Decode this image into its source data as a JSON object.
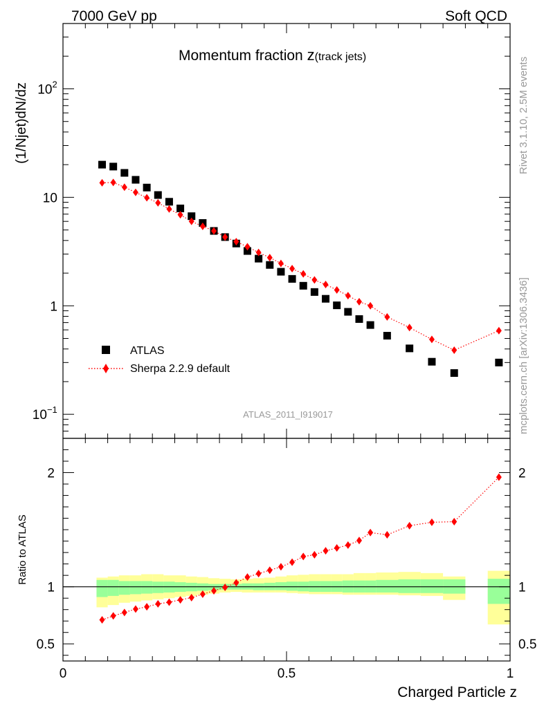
{
  "header": {
    "energy_label": "7000 GeV pp",
    "process_label": "Soft QCD"
  },
  "side_labels": {
    "rivet": "Rivet 3.1.10,  2.5M events",
    "source": "mcplots.cern.ch [arXiv:1306.3436]"
  },
  "chart_data": {
    "type": "scatter",
    "title_main": "Momentum fraction ",
    "title_var": "z",
    "title_sub": "(track jets)",
    "analysis_id": "ATLAS_2011_I919017",
    "xlabel": "Charged Particle z",
    "ylabel": "(1/Njet)dN/dz",
    "ratio_ylabel": "Ratio to ATLAS",
    "xlim": [
      0,
      1
    ],
    "ylim": [
      0.06,
      400
    ],
    "ylog": true,
    "ratio_ylim": [
      0.35,
      2.3
    ],
    "x_ticks": [
      {
        "v": 0,
        "label": "0"
      },
      {
        "v": 0.5,
        "label": "0.5"
      },
      {
        "v": 1,
        "label": "1"
      }
    ],
    "y_ticks": [
      {
        "v": 0.1,
        "base": "10",
        "exp": "−1"
      },
      {
        "v": 1,
        "base": "1",
        "exp": ""
      },
      {
        "v": 10,
        "base": "10",
        "exp": ""
      },
      {
        "v": 100,
        "base": "10",
        "exp": "2"
      }
    ],
    "ratio_ticks": [
      {
        "v": 0.5,
        "label": "0.5"
      },
      {
        "v": 1,
        "label": "1"
      },
      {
        "v": 2,
        "label": "2"
      }
    ],
    "legend_position": "lower-left",
    "series": [
      {
        "name": "ATLAS",
        "color": "#000000",
        "marker": "square",
        "x": [
          0.0875,
          0.1125,
          0.1375,
          0.1625,
          0.1875,
          0.2125,
          0.2375,
          0.2625,
          0.2875,
          0.3125,
          0.3375,
          0.3625,
          0.3875,
          0.4125,
          0.4375,
          0.4625,
          0.4875,
          0.5125,
          0.5375,
          0.5625,
          0.5875,
          0.6125,
          0.6375,
          0.6625,
          0.6875,
          0.725,
          0.775,
          0.825,
          0.875,
          0.975
        ],
        "y": [
          20.0,
          19.2,
          16.8,
          14.5,
          12.3,
          10.5,
          9.1,
          7.9,
          6.7,
          5.8,
          4.9,
          4.3,
          3.75,
          3.2,
          2.72,
          2.38,
          2.06,
          1.77,
          1.53,
          1.34,
          1.16,
          1.01,
          0.88,
          0.755,
          0.665,
          0.53,
          0.405,
          0.305,
          0.24,
          0.3
        ]
      },
      {
        "name": "Sherpa 2.2.9 default",
        "color": "#ff0000",
        "marker": "diamond",
        "line": "dotted",
        "x": [
          0.0875,
          0.1125,
          0.1375,
          0.1625,
          0.1875,
          0.2125,
          0.2375,
          0.2625,
          0.2875,
          0.3125,
          0.3375,
          0.3625,
          0.3875,
          0.4125,
          0.4375,
          0.4625,
          0.4875,
          0.5125,
          0.5375,
          0.5625,
          0.5875,
          0.6125,
          0.6375,
          0.6625,
          0.6875,
          0.725,
          0.775,
          0.825,
          0.875,
          0.975
        ],
        "y": [
          13.6,
          13.7,
          12.4,
          11.1,
          9.9,
          8.9,
          7.8,
          6.9,
          6.0,
          5.4,
          4.9,
          4.3,
          3.9,
          3.5,
          3.1,
          2.78,
          2.46,
          2.2,
          1.97,
          1.73,
          1.57,
          1.4,
          1.24,
          1.09,
          1.0,
          0.79,
          0.63,
          0.49,
          0.39,
          0.59
        ],
        "ratio": [
          0.71,
          0.745,
          0.775,
          0.805,
          0.825,
          0.85,
          0.865,
          0.885,
          0.905,
          0.935,
          0.965,
          0.995,
          1.035,
          1.085,
          1.115,
          1.145,
          1.175,
          1.215,
          1.265,
          1.28,
          1.315,
          1.34,
          1.365,
          1.405,
          1.475,
          1.455,
          1.535,
          1.565,
          1.57,
          1.96
        ]
      }
    ],
    "uncertainty_bands": {
      "inner_color": "#99ff99",
      "outer_color": "#ffff99",
      "bins": [
        {
          "x0": 0.075,
          "x1": 0.1,
          "lo1": 0.91,
          "hi1": 1.06,
          "lo2": 0.82,
          "hi2": 1.08
        },
        {
          "x0": 0.1,
          "x1": 0.125,
          "lo1": 0.92,
          "hi1": 1.06,
          "lo2": 0.84,
          "hi2": 1.09
        },
        {
          "x0": 0.125,
          "x1": 0.15,
          "lo1": 0.93,
          "hi1": 1.05,
          "lo2": 0.86,
          "hi2": 1.1
        },
        {
          "x0": 0.15,
          "x1": 0.175,
          "lo1": 0.935,
          "hi1": 1.05,
          "lo2": 0.87,
          "hi2": 1.1
        },
        {
          "x0": 0.175,
          "x1": 0.2,
          "lo1": 0.94,
          "hi1": 1.05,
          "lo2": 0.88,
          "hi2": 1.11
        },
        {
          "x0": 0.2,
          "x1": 0.225,
          "lo1": 0.945,
          "hi1": 1.045,
          "lo2": 0.89,
          "hi2": 1.11
        },
        {
          "x0": 0.225,
          "x1": 0.25,
          "lo1": 0.95,
          "hi1": 1.045,
          "lo2": 0.9,
          "hi2": 1.1
        },
        {
          "x0": 0.25,
          "x1": 0.275,
          "lo1": 0.955,
          "hi1": 1.04,
          "lo2": 0.91,
          "hi2": 1.1
        },
        {
          "x0": 0.275,
          "x1": 0.3,
          "lo1": 0.96,
          "hi1": 1.035,
          "lo2": 0.92,
          "hi2": 1.09
        },
        {
          "x0": 0.3,
          "x1": 0.325,
          "lo1": 0.965,
          "hi1": 1.03,
          "lo2": 0.93,
          "hi2": 1.085
        },
        {
          "x0": 0.325,
          "x1": 0.35,
          "lo1": 0.97,
          "hi1": 1.025,
          "lo2": 0.94,
          "hi2": 1.075
        },
        {
          "x0": 0.35,
          "x1": 0.375,
          "lo1": 0.975,
          "hi1": 1.025,
          "lo2": 0.95,
          "hi2": 1.07
        },
        {
          "x0": 0.375,
          "x1": 0.4,
          "lo1": 0.975,
          "hi1": 1.025,
          "lo2": 0.955,
          "hi2": 1.065
        },
        {
          "x0": 0.4,
          "x1": 0.425,
          "lo1": 0.975,
          "hi1": 1.03,
          "lo2": 0.95,
          "hi2": 1.07
        },
        {
          "x0": 0.425,
          "x1": 0.45,
          "lo1": 0.97,
          "hi1": 1.03,
          "lo2": 0.95,
          "hi2": 1.075
        },
        {
          "x0": 0.45,
          "x1": 0.475,
          "lo1": 0.97,
          "hi1": 1.035,
          "lo2": 0.95,
          "hi2": 1.08
        },
        {
          "x0": 0.475,
          "x1": 0.5,
          "lo1": 0.97,
          "hi1": 1.04,
          "lo2": 0.95,
          "hi2": 1.09
        },
        {
          "x0": 0.5,
          "x1": 0.525,
          "lo1": 0.965,
          "hi1": 1.045,
          "lo2": 0.945,
          "hi2": 1.1
        },
        {
          "x0": 0.525,
          "x1": 0.55,
          "lo1": 0.96,
          "hi1": 1.045,
          "lo2": 0.94,
          "hi2": 1.105
        },
        {
          "x0": 0.55,
          "x1": 0.575,
          "lo1": 0.955,
          "hi1": 1.05,
          "lo2": 0.935,
          "hi2": 1.11
        },
        {
          "x0": 0.575,
          "x1": 0.6,
          "lo1": 0.955,
          "hi1": 1.05,
          "lo2": 0.935,
          "hi2": 1.11
        },
        {
          "x0": 0.6,
          "x1": 0.625,
          "lo1": 0.955,
          "hi1": 1.05,
          "lo2": 0.935,
          "hi2": 1.11
        },
        {
          "x0": 0.625,
          "x1": 0.65,
          "lo1": 0.95,
          "hi1": 1.055,
          "lo2": 0.93,
          "hi2": 1.11
        },
        {
          "x0": 0.65,
          "x1": 0.675,
          "lo1": 0.95,
          "hi1": 1.055,
          "lo2": 0.93,
          "hi2": 1.12
        },
        {
          "x0": 0.675,
          "x1": 0.7,
          "lo1": 0.95,
          "hi1": 1.055,
          "lo2": 0.93,
          "hi2": 1.12
        },
        {
          "x0": 0.7,
          "x1": 0.75,
          "lo1": 0.95,
          "hi1": 1.06,
          "lo2": 0.93,
          "hi2": 1.125
        },
        {
          "x0": 0.75,
          "x1": 0.8,
          "lo1": 0.945,
          "hi1": 1.065,
          "lo2": 0.925,
          "hi2": 1.13
        },
        {
          "x0": 0.8,
          "x1": 0.85,
          "lo1": 0.945,
          "hi1": 1.065,
          "lo2": 0.92,
          "hi2": 1.12
        },
        {
          "x0": 0.85,
          "x1": 0.9,
          "lo1": 0.94,
          "hi1": 1.065,
          "lo2": 0.885,
          "hi2": 1.09
        },
        {
          "x0": 0.95,
          "x1": 1.0,
          "lo1": 0.85,
          "hi1": 1.07,
          "lo2": 0.67,
          "hi2": 1.14
        }
      ]
    }
  }
}
